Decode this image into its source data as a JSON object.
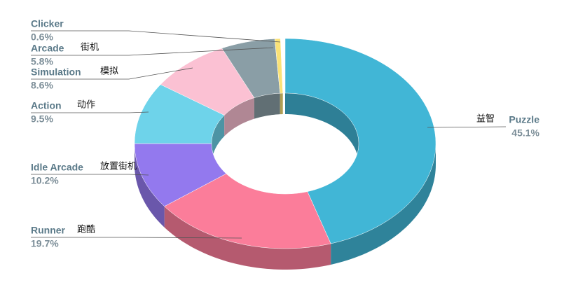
{
  "chart_data": {
    "type": "donut",
    "categories": [
      "Puzzle",
      "Runner",
      "Idle Arcade",
      "Action",
      "Simulation",
      "Arcade",
      "Clicker"
    ],
    "labels_zh": [
      "益智",
      "跑酷",
      "放置街机",
      "动作",
      "模拟",
      "街机",
      null
    ],
    "values": [
      45.1,
      19.7,
      10.2,
      9.5,
      8.6,
      5.8,
      0.6
    ],
    "value_labels": [
      "45.1%",
      "19.7%",
      "10.2%",
      "9.5%",
      "8.6%",
      "5.8%",
      "0.6%"
    ],
    "colors": [
      "#41b6d6",
      "#fb7d9a",
      "#9379ee",
      "#6ed3ea",
      "#fbc1d3",
      "#8a9ea6",
      "#fbe277"
    ]
  }
}
